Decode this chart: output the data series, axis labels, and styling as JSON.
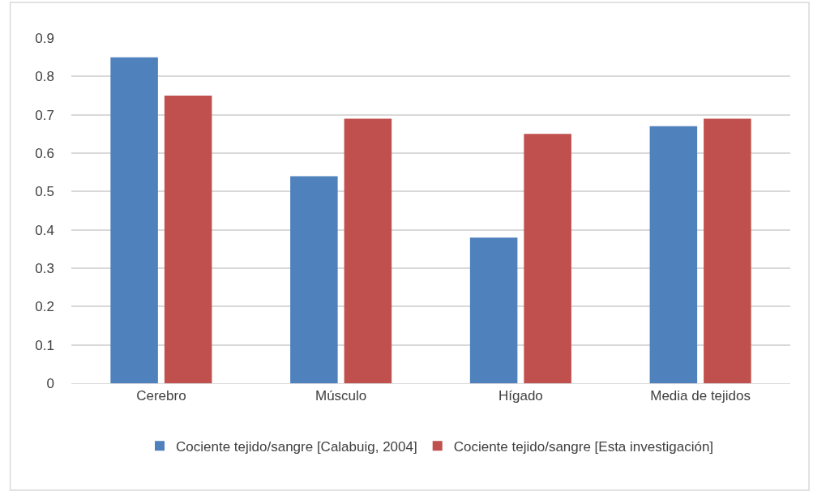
{
  "chart_data": {
    "type": "bar",
    "categories": [
      "Cerebro",
      "Músculo",
      "Hígado",
      "Media de tejidos"
    ],
    "series": [
      {
        "name": "Cociente tejido/sangre [Calabuig, 2004]",
        "color": "#4f81bd",
        "values": [
          0.85,
          0.54,
          0.38,
          0.67
        ]
      },
      {
        "name": "Cociente tejido/sangre [Esta investigación]",
        "color": "#c0504d",
        "values": [
          0.75,
          0.69,
          0.65,
          0.69
        ]
      }
    ],
    "ylim": [
      0,
      0.9
    ],
    "yticks": [
      0,
      0.1,
      0.2,
      0.3,
      0.4,
      0.5,
      0.6,
      0.7,
      0.8,
      0.9
    ],
    "grid": "y",
    "legend": "bottom"
  }
}
